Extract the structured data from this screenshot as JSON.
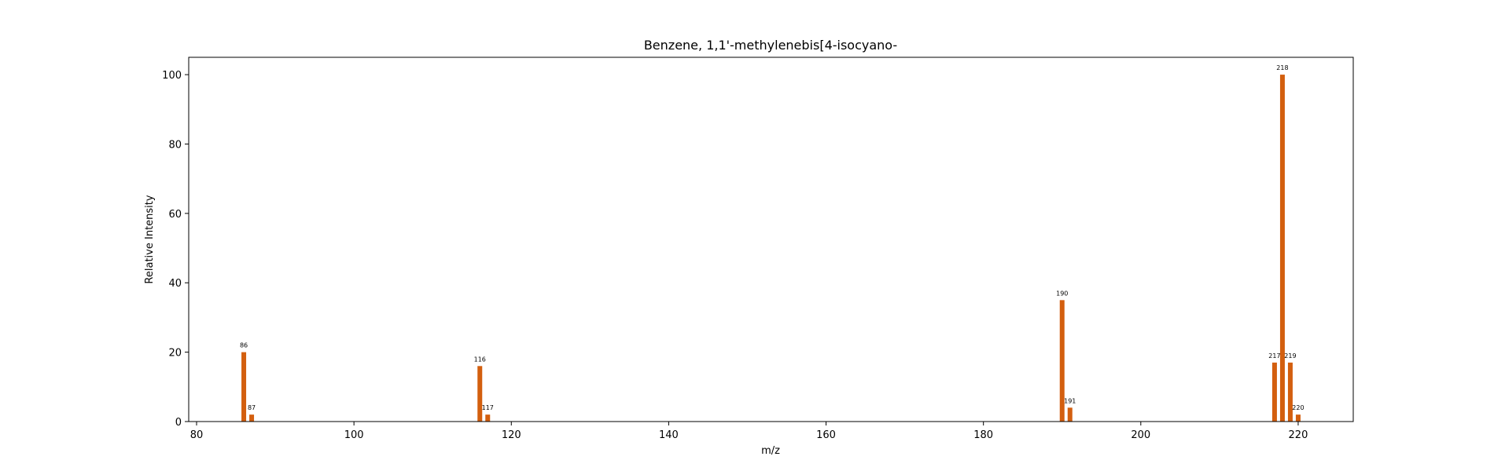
{
  "chart_data": {
    "type": "bar",
    "title": "Benzene, 1,1'-methylenebis[4-isocyano-",
    "xlabel": "m/z",
    "ylabel": "Relative Intensity",
    "xlim": [
      79,
      227
    ],
    "ylim": [
      0,
      105
    ],
    "xticks": [
      80,
      100,
      120,
      140,
      160,
      180,
      200,
      220
    ],
    "yticks": [
      0,
      20,
      40,
      60,
      80,
      100
    ],
    "grid": false,
    "bar_color": "#d35f0f",
    "peaks": [
      {
        "mz": 86,
        "intensity": 20,
        "label": "86"
      },
      {
        "mz": 87,
        "intensity": 2,
        "label": "87"
      },
      {
        "mz": 116,
        "intensity": 16,
        "label": "116"
      },
      {
        "mz": 117,
        "intensity": 2,
        "label": "117"
      },
      {
        "mz": 190,
        "intensity": 35,
        "label": "190"
      },
      {
        "mz": 191,
        "intensity": 4,
        "label": "191"
      },
      {
        "mz": 217,
        "intensity": 17,
        "label": "217"
      },
      {
        "mz": 218,
        "intensity": 100,
        "label": "218"
      },
      {
        "mz": 219,
        "intensity": 17,
        "label": "219"
      },
      {
        "mz": 220,
        "intensity": 2,
        "label": "220"
      }
    ]
  }
}
